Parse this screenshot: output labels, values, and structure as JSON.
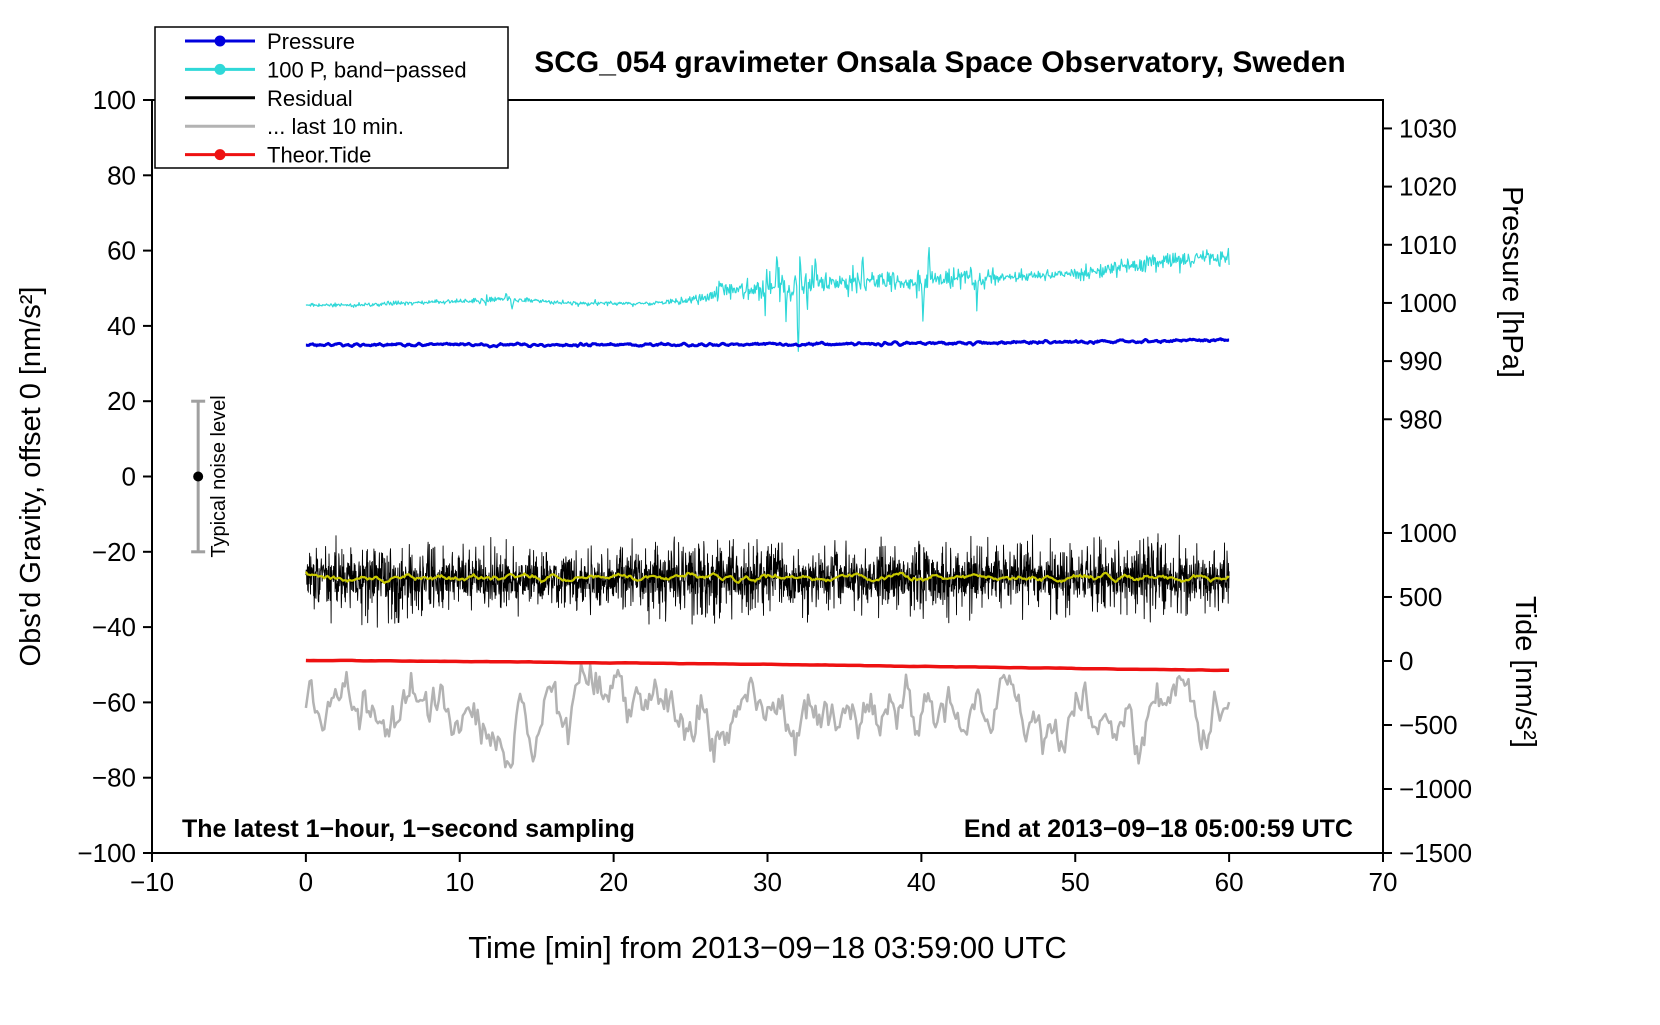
{
  "page": {
    "background": "#ffffff"
  },
  "chart_data": {
    "type": "line",
    "title": "SCG_054 gravimeter Onsala Space Observatory, Sweden",
    "xlabel": "Time [min] from 2013−09−18 03:59:00 UTC",
    "ylabel_left": "Obs'd Gravity, offset 0 [nm/s²]",
    "xlim": [
      -10,
      70
    ],
    "ylim": [
      -100,
      100
    ],
    "x_ticks": [
      -10,
      0,
      10,
      20,
      30,
      40,
      50,
      60,
      70
    ],
    "y_ticks_left": [
      -100,
      -80,
      -60,
      -40,
      -20,
      0,
      20,
      40,
      60,
      80,
      100
    ],
    "right_axes": [
      {
        "name": "pressure",
        "label": "Pressure [hPa]",
        "ticks": [
          1030,
          1020,
          1010,
          1000,
          990,
          980
        ],
        "map": {
          "v0": 980,
          "y0": 15.2,
          "per_unit": 1.545
        }
      },
      {
        "name": "tide",
        "label": "Tide [nm/s²]",
        "ticks": [
          1000,
          500,
          0,
          -500,
          -1000,
          -1500
        ],
        "map": {
          "v0": -1500,
          "y0": -100,
          "per_unit": 0.034
        }
      }
    ],
    "legend": {
      "position": "top-left",
      "entries": [
        {
          "label": "Pressure",
          "color": "#0000dd",
          "marker": true
        },
        {
          "label": "100 P, band−passed",
          "color": "#2fd8d8",
          "marker": true
        },
        {
          "label": "Residual",
          "color": "#000000",
          "marker": false
        },
        {
          "label": "... last 10 min.",
          "color": "#b3b3b3",
          "marker": false
        },
        {
          "label": "Theor.Tide",
          "color": "#ee1111",
          "marker": true
        }
      ]
    },
    "noise_level": {
      "x": -7,
      "center": 0,
      "range": [
        -20,
        20
      ],
      "label": "Typical noise level",
      "color": "#a0a0a0"
    },
    "annotations": [
      {
        "text": "The latest 1−hour, 1−second sampling",
        "anchor": "left"
      },
      {
        "text": "End at 2013−09−18 05:00:59 UTC",
        "anchor": "right"
      }
    ],
    "series": [
      {
        "name": "band_passed",
        "color": "#2fd8d8",
        "width": 1.2,
        "mode": "spiky",
        "seed": 11,
        "x0": 0,
        "x1": 60,
        "step": 0.05,
        "base": [
          [
            0,
            45.5
          ],
          [
            4,
            45.6
          ],
          [
            8,
            46.3
          ],
          [
            11,
            46.6
          ],
          [
            13,
            47.1
          ],
          [
            14,
            46.8
          ],
          [
            16,
            46.3
          ],
          [
            18,
            46.1
          ],
          [
            21,
            46.0
          ],
          [
            24,
            46.4
          ],
          [
            26,
            47.3
          ],
          [
            27,
            49.8
          ],
          [
            28,
            49.4
          ],
          [
            29,
            50.3
          ],
          [
            30,
            50.0
          ],
          [
            31,
            50.8
          ],
          [
            32,
            50.2
          ],
          [
            33,
            51.3
          ],
          [
            34,
            51.4
          ],
          [
            36,
            51.8
          ],
          [
            38,
            51.5
          ],
          [
            40,
            52.0
          ],
          [
            42,
            52.4
          ],
          [
            44,
            52.4
          ],
          [
            46,
            52.9
          ],
          [
            48,
            53.4
          ],
          [
            50,
            54.0
          ],
          [
            52,
            54.6
          ],
          [
            54,
            56.4
          ],
          [
            55,
            57.0
          ],
          [
            56,
            57.4
          ],
          [
            57,
            57.2
          ],
          [
            58,
            58.4
          ],
          [
            59,
            57.9
          ],
          [
            60,
            58.4
          ]
        ],
        "amp": [
          [
            0,
            0.5
          ],
          [
            10,
            0.55
          ],
          [
            12,
            1.0
          ],
          [
            14,
            0.6
          ],
          [
            22,
            0.5
          ],
          [
            25,
            0.9
          ],
          [
            27,
            2.2
          ],
          [
            28,
            2.6
          ],
          [
            29,
            3.2
          ],
          [
            30,
            4.5
          ],
          [
            31,
            3.6
          ],
          [
            32,
            5.0
          ],
          [
            33,
            3.0
          ],
          [
            34,
            2.6
          ],
          [
            35,
            3.2
          ],
          [
            36,
            3.0
          ],
          [
            38,
            2.0
          ],
          [
            39,
            1.6
          ],
          [
            40,
            3.6
          ],
          [
            41,
            1.8
          ],
          [
            43,
            2.2
          ],
          [
            44,
            2.0
          ],
          [
            46,
            1.4
          ],
          [
            48,
            1.2
          ],
          [
            50,
            1.3
          ],
          [
            52,
            1.8
          ],
          [
            54,
            2.2
          ],
          [
            56,
            2.0
          ],
          [
            58,
            1.7
          ],
          [
            60,
            1.6
          ]
        ],
        "spikes": [
          [
            13.0,
            2
          ],
          [
            13.4,
            -3.5
          ],
          [
            30.6,
            10
          ],
          [
            31.2,
            -9
          ],
          [
            32.0,
            -17
          ],
          [
            32.15,
            8
          ],
          [
            33.1,
            9
          ],
          [
            36.2,
            7
          ],
          [
            40.1,
            -13
          ],
          [
            40.5,
            7
          ],
          [
            43.6,
            -8
          ]
        ]
      },
      {
        "name": "pressure",
        "color": "#0000dd",
        "width": 3,
        "mode": "smooth",
        "window": 5,
        "seed": 21,
        "x0": 0,
        "x1": 60,
        "step": 0.05,
        "base": [
          [
            0,
            35.0
          ],
          [
            25,
            35.0
          ],
          [
            40,
            35.3
          ],
          [
            50,
            35.7
          ],
          [
            57,
            36.1
          ],
          [
            60,
            36.2
          ]
        ],
        "amp": 0.35
      },
      {
        "name": "residual",
        "color": "#000000",
        "width": 0.9,
        "mode": "spiky",
        "seed": 31,
        "x0": 0,
        "x1": 60,
        "step": 0.02,
        "base": [
          [
            0,
            -27.2
          ],
          [
            60,
            -27.0
          ]
        ],
        "amp": [
          [
            0,
            6.5
          ],
          [
            3,
            7.5
          ],
          [
            5,
            9.0
          ],
          [
            6,
            7.5
          ],
          [
            8,
            7.0
          ],
          [
            10,
            6.5
          ],
          [
            13,
            6.8
          ],
          [
            15,
            6.5
          ],
          [
            20,
            6.5
          ],
          [
            24,
            7.0
          ],
          [
            26,
            7.5
          ],
          [
            27,
            8.0
          ],
          [
            28,
            7.2
          ],
          [
            30,
            6.6
          ],
          [
            33,
            6.8
          ],
          [
            35,
            6.5
          ],
          [
            38,
            6.8
          ],
          [
            40,
            7.0
          ],
          [
            42,
            7.5
          ],
          [
            43,
            8.5
          ],
          [
            44,
            7.5
          ],
          [
            46,
            6.8
          ],
          [
            50,
            6.6
          ],
          [
            52,
            7.0
          ],
          [
            54,
            7.2
          ],
          [
            56,
            6.8
          ],
          [
            58,
            7.0
          ],
          [
            60,
            6.8
          ]
        ]
      },
      {
        "name": "residual_smooth",
        "color": "#c8c800",
        "width": 2.2,
        "mode": "smooth",
        "window": 6,
        "seed": 41,
        "x0": 0,
        "x1": 60,
        "step": 0.1,
        "base": [
          [
            0,
            -26.8
          ],
          [
            10,
            -27.0
          ],
          [
            15,
            -26.7
          ],
          [
            20,
            -26.9
          ],
          [
            27,
            -26.5
          ],
          [
            30,
            -26.9
          ],
          [
            40,
            -27.0
          ],
          [
            50,
            -26.9
          ],
          [
            60,
            -26.8
          ]
        ],
        "amp": 0.9
      },
      {
        "name": "last10",
        "color": "#b3b3b3",
        "width": 2.5,
        "mode": "smooth",
        "window": 7,
        "seed": 61,
        "x0": 0,
        "x1": 60,
        "step": 0.12,
        "base": [
          [
            0,
            -63.5
          ],
          [
            60,
            -63.5
          ]
        ],
        "amp": [
          [
            0,
            8
          ],
          [
            5,
            10
          ],
          [
            10,
            10
          ],
          [
            14,
            11
          ],
          [
            17,
            12
          ],
          [
            20,
            13
          ],
          [
            22,
            11
          ],
          [
            25,
            10
          ],
          [
            28,
            11
          ],
          [
            30,
            10
          ],
          [
            33,
            10
          ],
          [
            35,
            9
          ],
          [
            40,
            9
          ],
          [
            44,
            8
          ],
          [
            47,
            10
          ],
          [
            50,
            11
          ],
          [
            52,
            12
          ],
          [
            54,
            10
          ],
          [
            57,
            9
          ],
          [
            60,
            9
          ]
        ]
      },
      {
        "name": "theor_tide",
        "color": "#ee1111",
        "width": 3.5,
        "mode": "smooth",
        "window": 4,
        "seed": 51,
        "x0": 0,
        "x1": 60,
        "step": 0.25,
        "base": [
          [
            0,
            -48.8
          ],
          [
            15,
            -49.3
          ],
          [
            30,
            -49.9
          ],
          [
            45,
            -50.7
          ],
          [
            60,
            -51.5
          ]
        ],
        "amp": 0.05
      }
    ]
  }
}
